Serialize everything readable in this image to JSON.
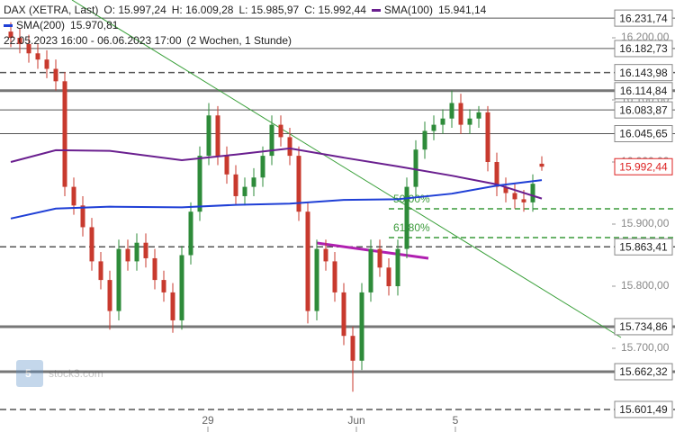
{
  "chart_data": {
    "type": "candlestick",
    "title": "DAX (XETRA, Last)",
    "ohlc_labels": [
      "O: 15.997,24",
      "H: 16.009,28",
      "L: 15.985,97",
      "C: 15.992,44"
    ],
    "range_text": "22.05.2023 16:00 - 06.06.2023 17:00",
    "period_text": "(2 Wochen, 1 Stunde)",
    "watermark": "stock3.com",
    "x": [
      0,
      1,
      2,
      3,
      4,
      5,
      6,
      7,
      8,
      9,
      10,
      11,
      12,
      13,
      14,
      15,
      16,
      17,
      18,
      19,
      20,
      21,
      22,
      23,
      24,
      25,
      26,
      27,
      28,
      29,
      30,
      31,
      32,
      33,
      34,
      35,
      36,
      37,
      38,
      39,
      40,
      41,
      42,
      43,
      44,
      45,
      46,
      47,
      48,
      49,
      50,
      51,
      52,
      53,
      54,
      55,
      56,
      57,
      58,
      59
    ],
    "open": [
      16210,
      16200,
      16190,
      16175,
      16165,
      16150,
      16130,
      15960,
      15930,
      15895,
      15840,
      15810,
      15760,
      15860,
      15840,
      15870,
      15845,
      15810,
      15790,
      15745,
      15850,
      15920,
      16010,
      16075,
      16010,
      15980,
      15945,
      15960,
      15975,
      16010,
      16060,
      16040,
      16010,
      15920,
      15760,
      15860,
      15840,
      15790,
      15720,
      15680,
      15790,
      15860,
      15830,
      15800,
      15860,
      15960,
      16020,
      16050,
      16060,
      16070,
      16095,
      16060,
      16070,
      16080,
      16000,
      15960,
      15950,
      15940,
      15935,
      15997.24
    ],
    "high": [
      16225,
      16215,
      16205,
      16190,
      16180,
      16165,
      16145,
      15975,
      15945,
      15910,
      15855,
      15825,
      15875,
      15875,
      15885,
      15885,
      15860,
      15825,
      15805,
      15865,
      15935,
      16025,
      16095,
      16090,
      16025,
      15995,
      15975,
      15990,
      16025,
      16075,
      16075,
      16055,
      16025,
      15935,
      15875,
      15875,
      15855,
      15805,
      15735,
      15805,
      15875,
      15875,
      15845,
      15875,
      15975,
      16035,
      16065,
      16075,
      16085,
      16115,
      16110,
      16085,
      16090,
      16090,
      16015,
      15975,
      15965,
      15955,
      15980,
      16009.28
    ],
    "low": [
      16185,
      16175,
      16160,
      16150,
      16135,
      16115,
      15945,
      15915,
      15880,
      15825,
      15795,
      15730,
      15745,
      15825,
      15825,
      15830,
      15795,
      15775,
      15725,
      15730,
      15835,
      15905,
      15995,
      15995,
      15965,
      15930,
      15930,
      15945,
      15960,
      15995,
      16025,
      15995,
      15905,
      15740,
      15745,
      15825,
      15775,
      15705,
      15630,
      15665,
      15775,
      15815,
      15785,
      15785,
      15845,
      15945,
      16005,
      16035,
      16045,
      16055,
      16045,
      16045,
      16055,
      15985,
      15945,
      15935,
      15925,
      15920,
      15920,
      15985.97
    ],
    "close": [
      16200,
      16190,
      16175,
      16165,
      16150,
      16130,
      15960,
      15930,
      15895,
      15840,
      15810,
      15760,
      15860,
      15840,
      15870,
      15845,
      15810,
      15790,
      15745,
      15850,
      15920,
      16010,
      16075,
      16010,
      15980,
      15945,
      15960,
      15975,
      16010,
      16060,
      16040,
      16010,
      15920,
      15760,
      15860,
      15840,
      15790,
      15720,
      15680,
      15790,
      15860,
      15830,
      15800,
      15860,
      15960,
      16020,
      16050,
      16060,
      16070,
      16095,
      16060,
      16070,
      16080,
      16000,
      15960,
      15950,
      15940,
      15935,
      15965,
      15992.44
    ],
    "up_color": "#2e8b3a",
    "down_color": "#c83a2e",
    "series": [
      {
        "name": "SMA(100)",
        "value_label": "15.941,14",
        "color": "#6a1f8f",
        "x": [
          0,
          5,
          11,
          19,
          25,
          31,
          37,
          43,
          49,
          54,
          59
        ],
        "values": [
          16000,
          16019,
          16018,
          16003,
          16012,
          16022,
          16007,
          15993,
          15978,
          15964,
          15941.14
        ]
      },
      {
        "name": "SMA(200)",
        "value_label": "15.970,81",
        "color": "#1f3fd6",
        "x": [
          0,
          5,
          11,
          19,
          25,
          31,
          37,
          43,
          49,
          54,
          59
        ],
        "values": [
          15909,
          15925,
          15928,
          15927,
          15931,
          15933,
          15939,
          15940,
          15949,
          15962,
          15970.81
        ]
      }
    ],
    "xlim": [
      -1.2,
      66.8
    ],
    "ylim": [
      15565.2,
      16260.9
    ],
    "xticks": [
      {
        "value": 21.9,
        "label": "29"
      },
      {
        "value": 38.4,
        "label": "Jun"
      },
      {
        "value": 49.4,
        "label": "5"
      }
    ],
    "yticks": [
      {
        "value": 15700,
        "label": "15.700,00"
      },
      {
        "value": 15800,
        "label": "15.800,00"
      },
      {
        "value": 15900,
        "label": "15.900,00"
      },
      {
        "value": 16000,
        "label": "16.000,00"
      },
      {
        "value": 16100,
        "label": "16.100,00"
      },
      {
        "value": 16200,
        "label": "16.200,00"
      }
    ],
    "levels": [
      {
        "value": 16231.74,
        "label": "16.231,74",
        "style": "solid"
      },
      {
        "value": 16182.73,
        "label": "16.182,73",
        "style": "solid"
      },
      {
        "value": 16143.98,
        "label": "16.143,98",
        "style": "dashed"
      },
      {
        "value": 16114.84,
        "label": "16.114,84",
        "style": "thick"
      },
      {
        "value": 16083.87,
        "label": "16.083,87",
        "style": "solid"
      },
      {
        "value": 16045.65,
        "label": "16.045,65",
        "style": "solid"
      },
      {
        "value": 15992.44,
        "label": "15.992,44",
        "style": "current"
      },
      {
        "value": 15863.41,
        "label": "15.863,41",
        "style": "dashed"
      },
      {
        "value": 15734.86,
        "label": "15.734,86",
        "style": "thick"
      },
      {
        "value": 15662.32,
        "label": "15.662,32",
        "style": "thick"
      },
      {
        "value": 15601.49,
        "label": "15.601,49",
        "style": "dashed"
      }
    ],
    "fibs": [
      {
        "value": 15924.6,
        "label": "50.00%"
      },
      {
        "value": 15878.3,
        "label": "61.80%"
      }
    ],
    "fib_color": "#3a9a3a"
  }
}
